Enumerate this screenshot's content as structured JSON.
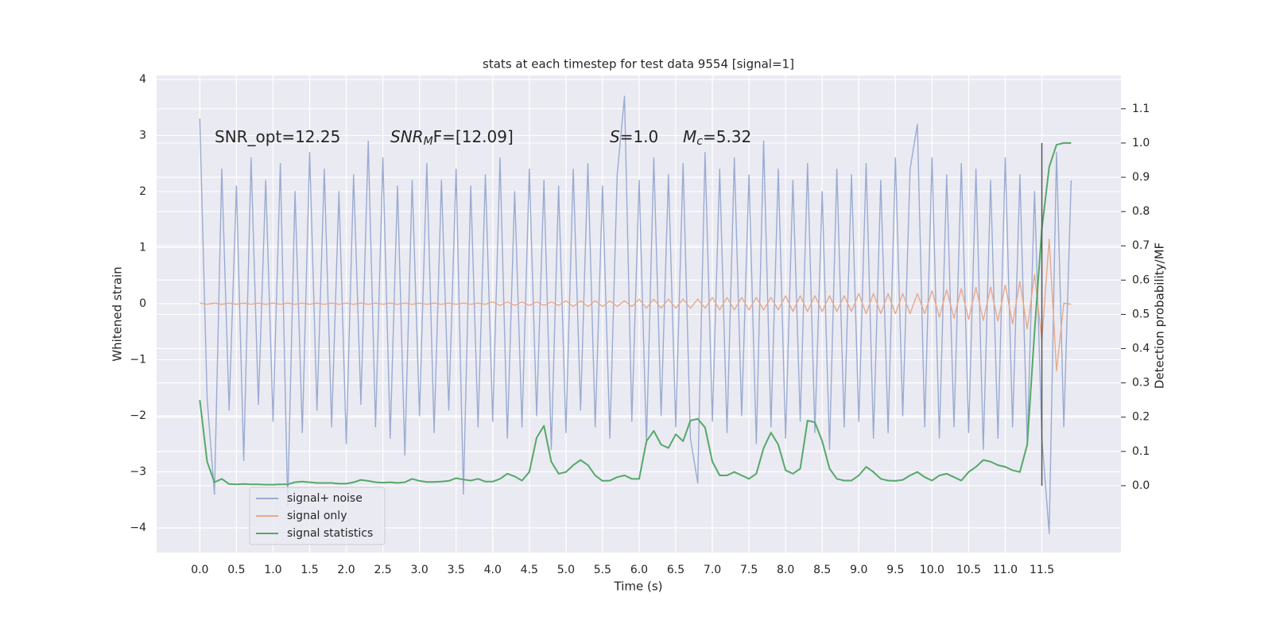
{
  "chart_data": {
    "type": "line",
    "title": "stats at each timestep for test data 9554 [signal=1]",
    "xlabel": "Time (s)",
    "ylabel": "Whitened strain",
    "y2label": "Detection probability/MF",
    "annotations": [
      {
        "text": "SNR_opt=12.25"
      },
      {
        "base": "SNR",
        "sub": "M",
        "rest": "F=[12.09]"
      },
      {
        "base": "S",
        "rest": "=1.0"
      },
      {
        "base": "M",
        "sub": "c",
        "rest": "=5.32"
      }
    ],
    "xlim": [
      -0.59,
      12.58
    ],
    "ylim": [
      -4.44,
      4.07
    ],
    "y2lim": [
      -0.195,
      1.197
    ],
    "xticks": [
      {
        "value": 0,
        "label": "0.0"
      },
      0.5,
      {
        "value": 1,
        "label": "1.0"
      },
      1.5,
      {
        "value": 2,
        "label": "2.0"
      },
      2.5,
      {
        "value": 3,
        "label": "3.0"
      },
      3.5,
      {
        "value": 4,
        "label": "4.0"
      },
      4.5,
      {
        "value": 5,
        "label": "5.0"
      },
      5.5,
      {
        "value": 6,
        "label": "6.0"
      },
      6.5,
      {
        "value": 7,
        "label": "7.0"
      },
      7.5,
      {
        "value": 8,
        "label": "8.0"
      },
      8.5,
      {
        "value": 9,
        "label": "9.0"
      },
      9.5,
      {
        "value": 10,
        "label": "10.0"
      },
      10.5,
      {
        "value": 11,
        "label": "11.0"
      },
      11.5
    ],
    "yticks": [
      {
        "value": -4,
        "label": "−4"
      },
      {
        "value": -3,
        "label": "−3"
      },
      {
        "value": -2,
        "label": "−2"
      },
      {
        "value": -1,
        "label": "−1"
      },
      0,
      1,
      2,
      3,
      4
    ],
    "y2ticks": [
      {
        "value": 0,
        "label": "0.0"
      },
      0.1,
      0.2,
      0.3,
      0.4,
      0.5,
      0.6,
      0.7,
      0.8,
      0.9,
      {
        "value": 1,
        "label": "1.0"
      },
      1.1
    ],
    "grid": true,
    "legend": "lower left",
    "vline": {
      "x": 11.5,
      "y2": [
        0,
        1
      ],
      "color": "#555555"
    },
    "x": [
      0,
      0.1,
      0.2,
      0.3,
      0.4,
      0.5,
      0.6,
      0.7,
      0.8,
      0.9,
      1,
      1.1,
      1.2,
      1.3,
      1.4,
      1.5,
      1.6,
      1.7,
      1.8,
      1.9,
      2,
      2.1,
      2.2,
      2.3,
      2.4,
      2.5,
      2.6,
      2.7,
      2.8,
      2.9,
      3,
      3.1,
      3.2,
      3.3,
      3.4,
      3.5,
      3.6,
      3.7,
      3.8,
      3.9,
      4,
      4.1,
      4.2,
      4.3,
      4.4,
      4.5,
      4.6,
      4.7,
      4.8,
      4.9,
      5,
      5.1,
      5.2,
      5.3,
      5.4,
      5.5,
      5.6,
      5.7,
      5.8,
      5.9,
      6,
      6.1,
      6.2,
      6.3,
      6.4,
      6.5,
      6.6,
      6.7,
      6.8,
      6.9,
      7,
      7.1,
      7.2,
      7.3,
      7.4,
      7.5,
      7.6,
      7.7,
      7.8,
      7.9,
      8,
      8.1,
      8.2,
      8.3,
      8.4,
      8.5,
      8.6,
      8.7,
      8.8,
      8.9,
      9,
      9.1,
      9.2,
      9.3,
      9.4,
      9.5,
      9.6,
      9.7,
      9.8,
      9.9,
      10,
      10.1,
      10.2,
      10.3,
      10.4,
      10.5,
      10.6,
      10.7,
      10.8,
      10.9,
      11,
      11.1,
      11.2,
      11.3,
      11.4,
      11.5,
      11.6,
      11.7,
      11.8,
      11.9
    ],
    "series": [
      {
        "name": "signal+ noise",
        "color": "#9aabd1",
        "axis": "y",
        "values": [
          3.3,
          -1.7,
          -3.4,
          2.4,
          -1.9,
          2.1,
          -2.8,
          2.6,
          -1.8,
          2.2,
          -2.1,
          2.5,
          -3.6,
          2.0,
          -2.3,
          2.7,
          -1.9,
          2.4,
          -2.2,
          2.0,
          -2.5,
          2.3,
          -1.8,
          2.9,
          -2.2,
          2.6,
          -2.4,
          2.1,
          -2.7,
          2.2,
          -2.0,
          2.5,
          -2.3,
          2.2,
          -1.9,
          2.4,
          -3.4,
          2.1,
          -2.2,
          2.3,
          -2.1,
          2.6,
          -2.4,
          2.0,
          -2.2,
          2.4,
          -2.0,
          2.2,
          -2.6,
          2.1,
          -2.3,
          2.4,
          -1.9,
          2.5,
          -2.2,
          2.1,
          -2.4,
          2.3,
          3.7,
          -2.1,
          2.2,
          -2.5,
          2.6,
          -2.0,
          2.3,
          -2.2,
          2.5,
          -2.4,
          -3.2,
          2.7,
          -2.1,
          2.4,
          -2.3,
          2.6,
          -2.0,
          2.3,
          -2.5,
          2.9,
          -2.2,
          2.4,
          -2.4,
          2.2,
          -2.1,
          2.5,
          -2.3,
          2.0,
          -2.6,
          2.4,
          -2.2,
          2.3,
          -2.1,
          2.5,
          -2.4,
          2.2,
          -2.3,
          2.6,
          -2.0,
          2.4,
          3.2,
          -2.2,
          2.6,
          -2.4,
          2.3,
          -2.2,
          2.5,
          -2.3,
          2.4,
          -2.6,
          2.2,
          -2.4,
          2.6,
          -2.2,
          2.3,
          -2.5,
          2.0,
          -2.4,
          -4.1,
          2.7,
          -2.2,
          2.2
        ]
      },
      {
        "name": "signal only",
        "color": "#e8a98a",
        "axis": "y",
        "values": [
          0.01,
          -0.01,
          0.01,
          -0.01,
          0.01,
          -0.01,
          0.01,
          -0.01,
          0.01,
          -0.01,
          0.01,
          -0.01,
          0.01,
          -0.01,
          0.01,
          -0.01,
          0.01,
          -0.01,
          0.01,
          -0.01,
          0.01,
          -0.01,
          0.01,
          -0.01,
          0.01,
          -0.01,
          0.01,
          -0.01,
          0.01,
          -0.01,
          0.01,
          -0.01,
          0.01,
          -0.01,
          0.01,
          -0.01,
          0.01,
          -0.01,
          0.01,
          -0.01,
          0.03,
          -0.03,
          0.03,
          -0.03,
          0.03,
          -0.03,
          0.03,
          -0.03,
          0.03,
          -0.03,
          0.05,
          -0.05,
          0.05,
          -0.05,
          0.05,
          -0.05,
          0.05,
          -0.05,
          0.05,
          -0.05,
          0.08,
          -0.08,
          0.08,
          -0.08,
          0.08,
          -0.08,
          0.08,
          -0.08,
          0.08,
          -0.08,
          0.11,
          -0.11,
          0.11,
          -0.11,
          0.11,
          -0.11,
          0.11,
          -0.11,
          0.11,
          -0.11,
          0.14,
          -0.14,
          0.14,
          -0.14,
          0.14,
          -0.14,
          0.14,
          -0.14,
          0.14,
          -0.14,
          0.18,
          -0.18,
          0.18,
          -0.18,
          0.18,
          -0.18,
          0.18,
          -0.18,
          0.18,
          -0.18,
          0.23,
          -0.24,
          0.25,
          -0.26,
          0.27,
          -0.28,
          0.29,
          -0.3,
          0.3,
          -0.31,
          0.33,
          -0.36,
          0.4,
          -0.45,
          0.52,
          -0.65,
          1.15,
          -1.2,
          0.01,
          -0.01
        ]
      },
      {
        "name": "signal statistics",
        "color": "#55a868",
        "axis": "y2",
        "values": [
          0.25,
          0.07,
          0.01,
          0.02,
          0.005,
          0.004,
          0.005,
          0.004,
          0.004,
          0.003,
          0.003,
          0.004,
          0.004,
          0.01,
          0.012,
          0.01,
          0.008,
          0.008,
          0.008,
          0.006,
          0.006,
          0.01,
          0.017,
          0.014,
          0.01,
          0.009,
          0.01,
          0.008,
          0.01,
          0.02,
          0.014,
          0.011,
          0.011,
          0.012,
          0.014,
          0.022,
          0.018,
          0.015,
          0.02,
          0.012,
          0.012,
          0.02,
          0.035,
          0.027,
          0.015,
          0.04,
          0.14,
          0.175,
          0.07,
          0.035,
          0.04,
          0.06,
          0.075,
          0.06,
          0.03,
          0.014,
          0.015,
          0.025,
          0.03,
          0.02,
          0.02,
          0.13,
          0.16,
          0.12,
          0.11,
          0.15,
          0.13,
          0.19,
          0.195,
          0.17,
          0.07,
          0.03,
          0.03,
          0.04,
          0.03,
          0.02,
          0.035,
          0.11,
          0.155,
          0.12,
          0.045,
          0.035,
          0.05,
          0.19,
          0.185,
          0.13,
          0.05,
          0.02,
          0.015,
          0.015,
          0.03,
          0.055,
          0.04,
          0.02,
          0.015,
          0.014,
          0.017,
          0.03,
          0.04,
          0.025,
          0.015,
          0.03,
          0.035,
          0.025,
          0.015,
          0.04,
          0.055,
          0.075,
          0.07,
          0.06,
          0.055,
          0.045,
          0.04,
          0.12,
          0.45,
          0.75,
          0.93,
          0.995,
          1.0,
          1.0
        ]
      }
    ]
  }
}
